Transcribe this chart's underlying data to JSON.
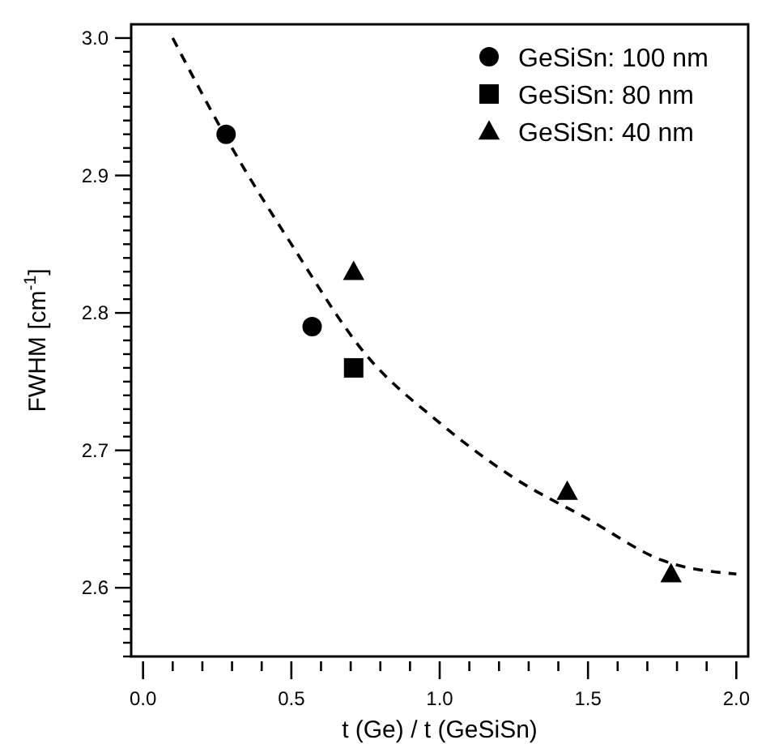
{
  "chart_data": {
    "type": "scatter",
    "xlabel": "t (Ge) / t (GeSiSn)",
    "ylabel": "FWHM [cm$^{-1}$]",
    "xlim": [
      -0.04,
      2.04
    ],
    "ylim": [
      2.55,
      3.01
    ],
    "xticks": [
      {
        "value": 0,
        "label": "0.0"
      },
      {
        "value": 0.1,
        "label": null
      },
      {
        "value": 0.2,
        "label": null
      },
      {
        "value": 0.3,
        "label": null
      },
      {
        "value": 0.4,
        "label": null
      },
      {
        "value": 0.5,
        "label": "0.5"
      },
      {
        "value": 0.6,
        "label": null
      },
      {
        "value": 0.7,
        "label": null
      },
      {
        "value": 0.8,
        "label": null
      },
      {
        "value": 0.9,
        "label": null
      },
      {
        "value": 1,
        "label": "1.0"
      },
      {
        "value": 1.1,
        "label": null
      },
      {
        "value": 1.2,
        "label": null
      },
      {
        "value": 1.3,
        "label": null
      },
      {
        "value": 1.4,
        "label": null
      },
      {
        "value": 1.5,
        "label": "1.5"
      },
      {
        "value": 1.6,
        "label": null
      },
      {
        "value": 1.7,
        "label": null
      },
      {
        "value": 1.8,
        "label": null
      },
      {
        "value": 1.9,
        "label": null
      },
      {
        "value": 2,
        "label": "2.0"
      }
    ],
    "yticks": [
      {
        "value": 2.55,
        "label": null
      },
      {
        "value": 2.56,
        "label": null
      },
      {
        "value": 2.57,
        "label": null
      },
      {
        "value": 2.58,
        "label": null
      },
      {
        "value": 2.59,
        "label": null
      },
      2.6,
      {
        "value": 2.61,
        "label": null
      },
      {
        "value": 2.62,
        "label": null
      },
      {
        "value": 2.63,
        "label": null
      },
      {
        "value": 2.64,
        "label": null
      },
      {
        "value": 2.65,
        "label": null
      },
      {
        "value": 2.66,
        "label": null
      },
      {
        "value": 2.67,
        "label": null
      },
      {
        "value": 2.68,
        "label": null
      },
      {
        "value": 2.69,
        "label": null
      },
      2.7,
      {
        "value": 2.71,
        "label": null
      },
      {
        "value": 2.72,
        "label": null
      },
      {
        "value": 2.73,
        "label": null
      },
      {
        "value": 2.74,
        "label": null
      },
      {
        "value": 2.75,
        "label": null
      },
      {
        "value": 2.76,
        "label": null
      },
      {
        "value": 2.77,
        "label": null
      },
      {
        "value": 2.78,
        "label": null
      },
      {
        "value": 2.79,
        "label": null
      },
      2.8,
      {
        "value": 2.81,
        "label": null
      },
      {
        "value": 2.82,
        "label": null
      },
      {
        "value": 2.83,
        "label": null
      },
      {
        "value": 2.84,
        "label": null
      },
      {
        "value": 2.85,
        "label": null
      },
      {
        "value": 2.86,
        "label": null
      },
      {
        "value": 2.87,
        "label": null
      },
      {
        "value": 2.88,
        "label": null
      },
      {
        "value": 2.89,
        "label": null
      },
      2.9,
      {
        "value": 2.91,
        "label": null
      },
      {
        "value": 2.92,
        "label": null
      },
      {
        "value": 2.93,
        "label": null
      },
      {
        "value": 2.94,
        "label": null
      },
      {
        "value": 2.95,
        "label": null
      },
      {
        "value": 2.96,
        "label": null
      },
      {
        "value": 2.97,
        "label": null
      },
      {
        "value": 2.98,
        "label": null
      },
      {
        "value": 2.99,
        "label": null
      },
      {
        "value": 3.0,
        "label": "3.0"
      }
    ],
    "grid": false,
    "legend": "top right",
    "series": [
      {
        "name": "GeSiSn: 100 nm",
        "color": "#000000",
        "marker": "circle",
        "x": [
          0.28,
          0.57
        ],
        "values": [
          2.93,
          2.79
        ]
      },
      {
        "name": "GeSiSn: 80 nm",
        "color": "#000000",
        "marker": "square",
        "x": [
          0.71
        ],
        "values": [
          2.76
        ]
      },
      {
        "name": "GeSiSn: 40 nm",
        "color": "#000000",
        "marker": "triangle",
        "x": [
          0.71,
          1.43,
          1.78
        ],
        "values": [
          2.83,
          2.67,
          2.61
        ]
      },
      {
        "type": "line",
        "color": "#000000",
        "marker": "none",
        "line_style": "dashed",
        "x": [
          0.1,
          0.3,
          0.5,
          0.75,
          1.0,
          1.25,
          1.5,
          1.75,
          2.0
        ],
        "values": [
          3.0,
          2.92,
          2.85,
          2.77,
          2.72,
          2.68,
          2.65,
          2.62,
          2.61
        ]
      }
    ]
  }
}
